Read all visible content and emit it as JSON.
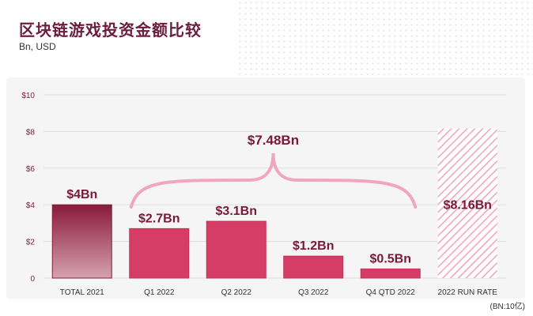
{
  "header": {
    "title": "区块链游戏投资金额比较",
    "subtitle": "Bn, USD"
  },
  "footnote": "(BN:10亿)",
  "chart_data": {
    "type": "bar",
    "categories": [
      "TOTAL 2021",
      "Q1 2022",
      "Q2 2022",
      "Q3 2022",
      "Q4 QTD 2022",
      "2022 RUN RATE"
    ],
    "values": [
      4,
      2.7,
      3.1,
      1.2,
      0.5,
      8.16
    ],
    "data_labels": [
      "$4Bn",
      "$2.7Bn",
      "$3.1Bn",
      "$1.2Bn",
      "$0.5Bn",
      "$8.16Bn"
    ],
    "y_ticks": [
      0,
      2,
      4,
      6,
      8,
      10
    ],
    "y_tick_labels": [
      "0",
      "$2",
      "$4",
      "$6",
      "$8",
      "$10"
    ],
    "ylim": [
      0,
      10
    ],
    "grid": true,
    "styles": [
      "gradient",
      "solid",
      "solid",
      "solid",
      "solid",
      "hatched"
    ],
    "annotation": {
      "label": "$7.48Bn",
      "spans": [
        "Q1 2022",
        "Q4 QTD 2022"
      ]
    },
    "colors": {
      "dark": "#8a1a3c",
      "light": "#d6a1b2",
      "bar": "#d63d66",
      "bar_edge": "#c43159",
      "hatch": "#f5a3b8",
      "brace": "#f0a7bd",
      "label": "#7a1836",
      "tick": "#8a1a3c",
      "category": "#333333",
      "grid": "#dddddd"
    }
  }
}
